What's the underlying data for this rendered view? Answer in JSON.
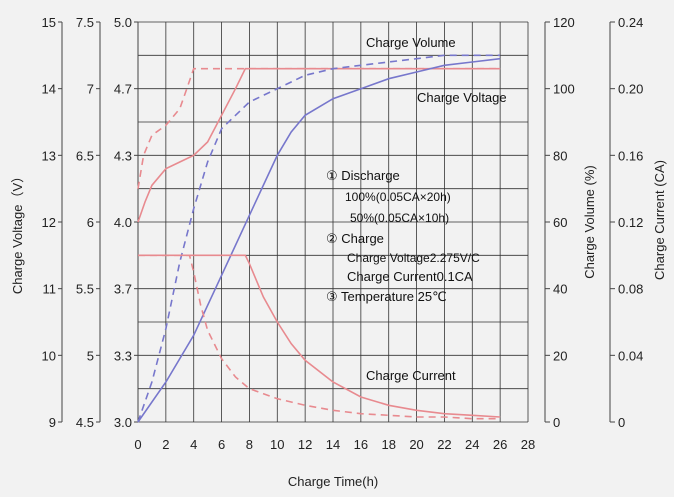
{
  "chart_data": {
    "type": "line",
    "title": "",
    "x_axis": {
      "label": "Charge Time(h)",
      "range": [
        0,
        28
      ],
      "ticks": [
        0,
        2,
        4,
        6,
        8,
        10,
        12,
        14,
        16,
        18,
        20,
        22,
        24,
        26,
        28
      ]
    },
    "y_axes": {
      "charge_voltage_12v": {
        "label": "Charge Voltage（V）",
        "range": [
          9,
          15
        ],
        "ticks": [
          9,
          10,
          11,
          12,
          13,
          14,
          15
        ]
      },
      "charge_voltage_6v": {
        "label": "",
        "range": [
          4.5,
          7.5
        ],
        "ticks": [
          4.5,
          5.0,
          5.5,
          6.0,
          6.5,
          7.0,
          7.5
        ]
      },
      "charge_voltage_cell": {
        "label": "",
        "range": [
          3.0,
          5.0
        ],
        "ticks": [
          "3.0",
          "3.3",
          "3.7",
          "4.0",
          "4.3",
          "4.7",
          "5.0"
        ]
      },
      "charge_volume": {
        "label": "Charge Volume (%)",
        "range": [
          0,
          120
        ],
        "ticks": [
          0,
          20,
          40,
          60,
          80,
          100,
          120
        ]
      },
      "charge_current": {
        "label": "Charge Current (CA)",
        "range": [
          0,
          0.24
        ],
        "ticks": [
          "0",
          "0.04",
          "0.08",
          "0.12",
          "0.16",
          "0.20",
          "0.24"
        ]
      }
    },
    "curve_labels": [
      "Charge Volume",
      "Charge Voltage",
      "Charge Current"
    ],
    "annotation": [
      "① Discharge",
      "100%(0.05CA×20h)",
      "50%(0.05CA×10h)",
      "② Charge",
      "Charge Voltage2.275V/C",
      "Charge Current0.1CA",
      "③ Temperature 25℃"
    ],
    "series": [
      {
        "name": "",
        "axis": "charge_voltage_12v",
        "style": "solid",
        "color": "#e88a8f",
        "points": [
          [
            0,
            12.0
          ],
          [
            0.5,
            12.3
          ],
          [
            1,
            12.55
          ],
          [
            2,
            12.8
          ],
          [
            3,
            12.9
          ],
          [
            4,
            13.0
          ],
          [
            5,
            13.2
          ],
          [
            6,
            13.6
          ],
          [
            7,
            14.0
          ],
          [
            7.7,
            14.3
          ],
          [
            26,
            14.3
          ]
        ]
      },
      {
        "name": "",
        "axis": "charge_voltage_12v",
        "style": "dashed",
        "color": "#e88a8f",
        "points": [
          [
            0,
            12.5
          ],
          [
            0.4,
            13.0
          ],
          [
            1,
            13.3
          ],
          [
            2,
            13.45
          ],
          [
            3,
            13.7
          ],
          [
            3.5,
            14.0
          ],
          [
            4,
            14.3
          ],
          [
            26,
            14.3
          ]
        ]
      },
      {
        "name": "",
        "axis": "charge_volume",
        "style": "solid",
        "color": "#7777cc",
        "points": [
          [
            0,
            0
          ],
          [
            2,
            12
          ],
          [
            4,
            26
          ],
          [
            6,
            44
          ],
          [
            8,
            62
          ],
          [
            10,
            80
          ],
          [
            11,
            87
          ],
          [
            12,
            92
          ],
          [
            14,
            97
          ],
          [
            16,
            100
          ],
          [
            18,
            103
          ],
          [
            20,
            105
          ],
          [
            22,
            107
          ],
          [
            24,
            108
          ],
          [
            26,
            109
          ]
        ]
      },
      {
        "name": "",
        "axis": "charge_volume",
        "style": "dashed",
        "color": "#7777cc",
        "points": [
          [
            0,
            0
          ],
          [
            1,
            12
          ],
          [
            2,
            28
          ],
          [
            3,
            48
          ],
          [
            4,
            64
          ],
          [
            5,
            78
          ],
          [
            6,
            88
          ],
          [
            7,
            92
          ],
          [
            8,
            96
          ],
          [
            10,
            100
          ],
          [
            12,
            104
          ],
          [
            14,
            106
          ],
          [
            16,
            107
          ],
          [
            18,
            108
          ],
          [
            20,
            109
          ],
          [
            22,
            110
          ],
          [
            24,
            110
          ],
          [
            26,
            110
          ]
        ]
      },
      {
        "name": "",
        "axis": "charge_current",
        "style": "solid",
        "color": "#e88a8f",
        "points": [
          [
            0,
            0.1
          ],
          [
            7.7,
            0.1
          ],
          [
            8,
            0.095
          ],
          [
            9,
            0.075
          ],
          [
            10,
            0.06
          ],
          [
            11,
            0.047
          ],
          [
            12,
            0.037
          ],
          [
            14,
            0.024
          ],
          [
            16,
            0.015
          ],
          [
            18,
            0.01
          ],
          [
            20,
            0.007
          ],
          [
            22,
            0.005
          ],
          [
            24,
            0.004
          ],
          [
            26,
            0.003
          ]
        ]
      },
      {
        "name": "",
        "axis": "charge_current",
        "style": "dashed",
        "color": "#e88a8f",
        "points": [
          [
            0,
            0.1
          ],
          [
            3.7,
            0.1
          ],
          [
            4,
            0.09
          ],
          [
            4.5,
            0.07
          ],
          [
            5,
            0.055
          ],
          [
            6,
            0.038
          ],
          [
            7,
            0.027
          ],
          [
            8,
            0.02
          ],
          [
            10,
            0.014
          ],
          [
            12,
            0.01
          ],
          [
            14,
            0.007
          ],
          [
            16,
            0.005
          ],
          [
            18,
            0.004
          ],
          [
            20,
            0.003
          ],
          [
            22,
            0.003
          ],
          [
            24,
            0.002
          ],
          [
            26,
            0.002
          ]
        ]
      }
    ],
    "grid": true,
    "legend": "none"
  }
}
